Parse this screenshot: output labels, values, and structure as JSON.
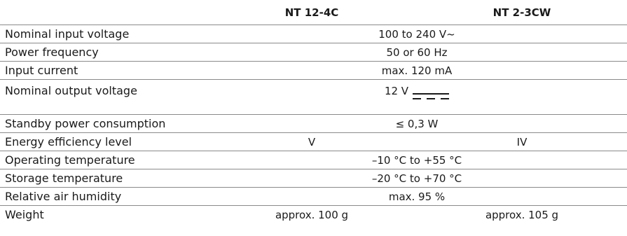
{
  "columns": [
    "NT 12-4C",
    "NT 2-3CW"
  ],
  "rows": [
    {
      "label": "Nominal input voltage",
      "value": "100 to 240 V~"
    },
    {
      "label": "Power frequency",
      "value": "50 or 60 Hz"
    },
    {
      "label": "Input current",
      "value": "max. 120 mA"
    },
    {
      "label": "Nominal output voltage",
      "value": "12 V",
      "icon": "dc-symbol-icon"
    },
    {
      "label": "Standby power consumption",
      "value": "≤ 0,3 W"
    },
    {
      "label": "Energy efficiency level",
      "values": [
        "V",
        "IV"
      ]
    },
    {
      "label": "Operating temperature",
      "value": "–10 °C to +55 °C"
    },
    {
      "label": "Storage temperature",
      "value": "–20 °C to +70 °C"
    },
    {
      "label": "Relative air humidity",
      "value": "max. 95 %"
    },
    {
      "label": "Weight",
      "values": [
        "approx. 100 g",
        "approx. 105 g"
      ]
    }
  ]
}
